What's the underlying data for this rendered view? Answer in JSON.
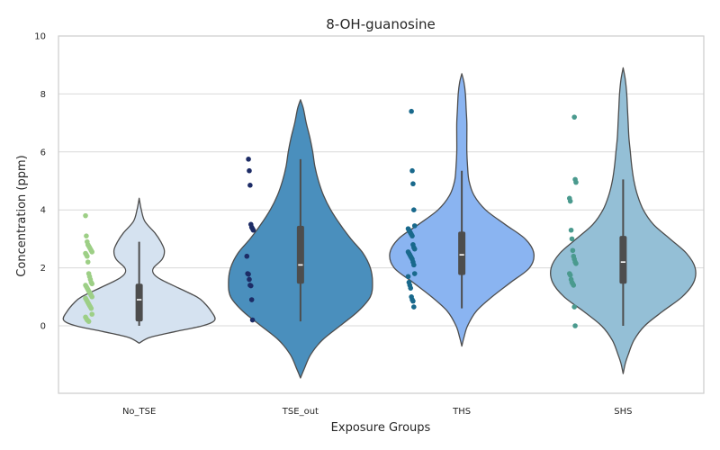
{
  "chart_data": {
    "type": "violin",
    "title": "8-OH-guanosine",
    "xlabel": "Exposure Groups",
    "ylabel": "Concentration (ppm)",
    "ylim": [
      -2.3,
      10
    ],
    "yticks": [
      0,
      2,
      4,
      6,
      8,
      10
    ],
    "grid": true,
    "categories": [
      "No_TSE",
      "TSE_out",
      "THS",
      "SHS"
    ],
    "colors": {
      "violin": [
        "#d5e2f0",
        "#4a8fbd",
        "#8ab4f1",
        "#94bfd6"
      ],
      "points": [
        "#9dcf86",
        "#1d2c66",
        "#19698c",
        "#4a9a8e"
      ],
      "outline": "#4d4d4d",
      "box": "#4d4d4d",
      "grid": "#d9d9d9"
    },
    "violins": [
      {
        "name": "No_TSE",
        "min": -0.6,
        "max": 4.4,
        "profile": [
          [
            -0.6,
            0.0
          ],
          [
            -0.4,
            0.15
          ],
          [
            -0.2,
            0.5
          ],
          [
            0.0,
            0.88
          ],
          [
            0.2,
            1.05
          ],
          [
            0.5,
            1.0
          ],
          [
            0.8,
            0.9
          ],
          [
            1.0,
            0.8
          ],
          [
            1.3,
            0.55
          ],
          [
            1.6,
            0.3
          ],
          [
            1.8,
            0.2
          ],
          [
            2.0,
            0.2
          ],
          [
            2.3,
            0.32
          ],
          [
            2.6,
            0.35
          ],
          [
            2.9,
            0.3
          ],
          [
            3.2,
            0.22
          ],
          [
            3.6,
            0.08
          ],
          [
            4.0,
            0.03
          ],
          [
            4.4,
            0.0
          ]
        ],
        "box": {
          "q1": 0.15,
          "median": 0.9,
          "q3": 1.45,
          "whisker_low": 0.0,
          "whisker_high": 2.9
        }
      },
      {
        "name": "TSE_out",
        "min": -1.8,
        "max": 7.8,
        "profile": [
          [
            -1.8,
            0.0
          ],
          [
            -1.5,
            0.05
          ],
          [
            -1.0,
            0.14
          ],
          [
            -0.5,
            0.3
          ],
          [
            0.0,
            0.55
          ],
          [
            0.5,
            0.8
          ],
          [
            1.0,
            0.97
          ],
          [
            1.5,
            1.0
          ],
          [
            2.0,
            0.97
          ],
          [
            2.5,
            0.87
          ],
          [
            3.0,
            0.7
          ],
          [
            3.5,
            0.55
          ],
          [
            4.0,
            0.42
          ],
          [
            4.5,
            0.32
          ],
          [
            5.0,
            0.25
          ],
          [
            5.5,
            0.2
          ],
          [
            6.0,
            0.17
          ],
          [
            6.5,
            0.13
          ],
          [
            7.0,
            0.08
          ],
          [
            7.5,
            0.04
          ],
          [
            7.8,
            0.0
          ]
        ],
        "box": {
          "q1": 1.45,
          "median": 2.1,
          "q3": 3.45,
          "whisker_low": 0.15,
          "whisker_high": 5.75
        }
      },
      {
        "name": "THS",
        "min": -0.7,
        "max": 8.7,
        "profile": [
          [
            -0.7,
            0.0
          ],
          [
            -0.4,
            0.03
          ],
          [
            0.0,
            0.08
          ],
          [
            0.5,
            0.2
          ],
          [
            1.0,
            0.42
          ],
          [
            1.5,
            0.68
          ],
          [
            2.0,
            0.94
          ],
          [
            2.5,
            1.0
          ],
          [
            3.0,
            0.88
          ],
          [
            3.5,
            0.6
          ],
          [
            4.0,
            0.33
          ],
          [
            4.5,
            0.17
          ],
          [
            5.0,
            0.1
          ],
          [
            5.5,
            0.08
          ],
          [
            6.0,
            0.07
          ],
          [
            6.5,
            0.07
          ],
          [
            7.0,
            0.07
          ],
          [
            7.5,
            0.06
          ],
          [
            8.0,
            0.05
          ],
          [
            8.4,
            0.03
          ],
          [
            8.7,
            0.0
          ]
        ],
        "box": {
          "q1": 1.75,
          "median": 2.45,
          "q3": 3.25,
          "whisker_low": 0.6,
          "whisker_high": 5.35
        }
      },
      {
        "name": "SHS",
        "min": -1.65,
        "max": 8.9,
        "profile": [
          [
            -1.65,
            0.0
          ],
          [
            -1.3,
            0.03
          ],
          [
            -1.0,
            0.07
          ],
          [
            -0.5,
            0.15
          ],
          [
            0.0,
            0.3
          ],
          [
            0.5,
            0.55
          ],
          [
            1.0,
            0.82
          ],
          [
            1.5,
            0.98
          ],
          [
            2.0,
            1.0
          ],
          [
            2.5,
            0.88
          ],
          [
            3.0,
            0.65
          ],
          [
            3.5,
            0.42
          ],
          [
            4.0,
            0.28
          ],
          [
            4.5,
            0.2
          ],
          [
            5.0,
            0.15
          ],
          [
            5.5,
            0.12
          ],
          [
            6.0,
            0.1
          ],
          [
            6.5,
            0.08
          ],
          [
            7.0,
            0.07
          ],
          [
            7.5,
            0.06
          ],
          [
            8.0,
            0.05
          ],
          [
            8.5,
            0.03
          ],
          [
            8.9,
            0.0
          ]
        ],
        "box": {
          "q1": 1.45,
          "median": 2.2,
          "q3": 3.1,
          "whisker_low": 0.0,
          "whisker_high": 5.05
        }
      }
    ],
    "points": [
      [
        3.8,
        3.1,
        2.9,
        2.8,
        2.75,
        2.7,
        2.65,
        2.6,
        2.55,
        2.5,
        2.45,
        2.4,
        2.2,
        1.8,
        1.7,
        1.6,
        1.5,
        1.45,
        1.4,
        1.35,
        1.3,
        1.25,
        1.2,
        1.15,
        1.1,
        1.05,
        1.0,
        0.95,
        0.9,
        0.85,
        0.8,
        0.75,
        0.7,
        0.65,
        0.6,
        0.4,
        0.3,
        0.25,
        0.2,
        0.18,
        0.15
      ],
      [
        5.75,
        5.35,
        4.85,
        3.5,
        3.4,
        3.35,
        3.3,
        2.4,
        1.8,
        1.78,
        1.6,
        1.4,
        1.38,
        0.9,
        0.2
      ],
      [
        7.4,
        5.35,
        4.9,
        4.0,
        3.45,
        3.35,
        3.3,
        3.25,
        3.2,
        3.15,
        3.1,
        2.8,
        2.7,
        2.65,
        2.55,
        2.5,
        2.45,
        2.4,
        2.35,
        2.3,
        2.2,
        2.1,
        1.8,
        1.7,
        1.5,
        1.4,
        1.3,
        1.0,
        0.9,
        0.85,
        0.65
      ],
      [
        7.2,
        5.05,
        4.95,
        4.4,
        4.3,
        3.3,
        3.0,
        2.6,
        2.4,
        2.3,
        2.2,
        2.15,
        1.8,
        1.75,
        1.6,
        1.5,
        1.45,
        1.4,
        0.65,
        0.0
      ]
    ]
  }
}
